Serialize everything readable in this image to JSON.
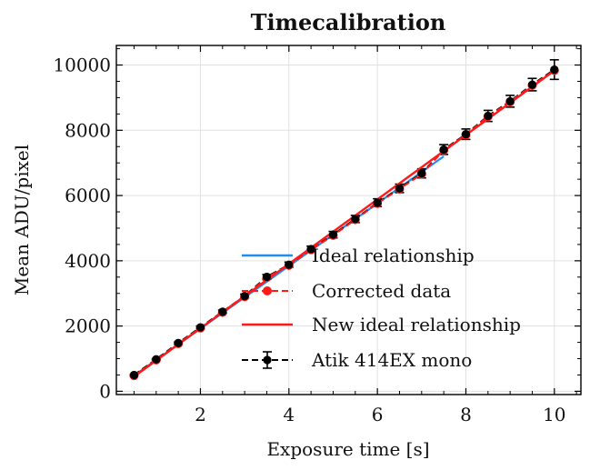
{
  "chart_data": {
    "type": "line",
    "title": "Timecalibration",
    "xlabel": "Exposure time [s]",
    "ylabel": "Mean ADU/pixel",
    "xlim": [
      0.1,
      10.6
    ],
    "ylim": [
      -100,
      10600
    ],
    "xticks": [
      2,
      4,
      6,
      8,
      10
    ],
    "yticks": [
      0,
      2000,
      4000,
      6000,
      8000,
      10000
    ],
    "grid": true,
    "legend_position": "lower-right",
    "series": [
      {
        "name": "Ideal relationship",
        "style": "solid",
        "color": "#1f8ef1",
        "x": [
          0.5,
          7.5
        ],
        "y": [
          480,
          7200
        ]
      },
      {
        "name": "Corrected data",
        "style": "dashed-markers",
        "color": "#ff1a1a",
        "x": [
          0.5,
          1.0,
          1.5,
          2.0,
          2.5,
          3.0,
          3.5,
          4.0,
          4.5,
          5.0,
          5.5,
          6.0,
          6.5,
          7.0,
          7.5,
          8.0,
          8.5,
          9.0,
          9.5,
          10.0
        ],
        "y": [
          480,
          960,
          1460,
          1940,
          2420,
          2900,
          3490,
          3860,
          4340,
          4780,
          5260,
          5760,
          6200,
          6660,
          7390,
          7860,
          8420,
          8870,
          9380,
          9830
        ]
      },
      {
        "name": "New ideal relationship",
        "style": "solid",
        "color": "#ff1a1a",
        "x": [
          0.5,
          10.0
        ],
        "y": [
          450,
          9830
        ]
      },
      {
        "name": "Atik 414EX mono",
        "style": "dashed-errorbars",
        "color": "#000000",
        "x": [
          0.5,
          1.0,
          1.5,
          2.0,
          2.5,
          3.0,
          3.5,
          4.0,
          4.5,
          5.0,
          5.5,
          6.0,
          6.5,
          7.0,
          7.5,
          8.0,
          8.5,
          9.0,
          9.5,
          10.0
        ],
        "y": [
          500,
          980,
          1480,
          1960,
          2440,
          2920,
          3510,
          3880,
          4360,
          4800,
          5280,
          5780,
          6220,
          6680,
          7410,
          7880,
          8440,
          8890,
          9400,
          9860
        ],
        "yerr": [
          10,
          20,
          30,
          40,
          50,
          60,
          70,
          80,
          90,
          100,
          110,
          120,
          130,
          140,
          150,
          160,
          170,
          180,
          190,
          300
        ]
      }
    ]
  }
}
